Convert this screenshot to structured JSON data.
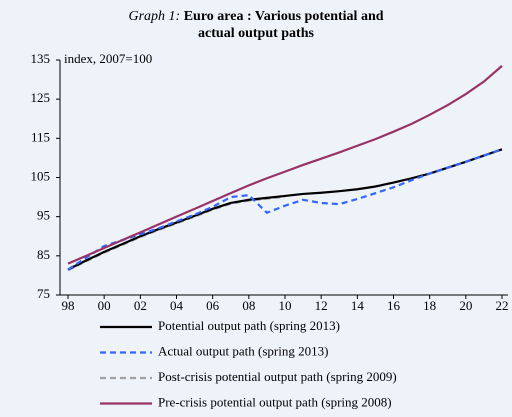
{
  "chart_data": {
    "type": "line",
    "label": "Graph 1:",
    "title": "Euro area : Various potential and actual output paths",
    "y_label": "index, 2007=100",
    "x": [
      1998,
      1999,
      2000,
      2001,
      2002,
      2003,
      2004,
      2005,
      2006,
      2007,
      2008,
      2009,
      2010,
      2011,
      2012,
      2013,
      2014,
      2015,
      2016,
      2017,
      2018,
      2019,
      2020,
      2021,
      2022
    ],
    "xlim": [
      1998,
      2022
    ],
    "xticks": [
      {
        "value": 1998,
        "label": "98"
      },
      {
        "value": 2000,
        "label": "00"
      },
      {
        "value": 2002,
        "label": "02"
      },
      {
        "value": 2004,
        "label": "04"
      },
      {
        "value": 2006,
        "label": "06"
      },
      {
        "value": 2008,
        "label": "08"
      },
      {
        "value": 2010,
        "label": "10"
      },
      {
        "value": 2012,
        "label": "12"
      },
      {
        "value": 2014,
        "label": "14"
      },
      {
        "value": 2016,
        "label": "16"
      },
      {
        "value": 2018,
        "label": "18"
      },
      {
        "value": 2020,
        "label": "20"
      },
      {
        "value": 2022,
        "label": "22"
      }
    ],
    "ylim": [
      75,
      135
    ],
    "yticks": [
      75,
      85,
      95,
      105,
      115,
      125,
      135
    ],
    "series": [
      {
        "name": "Potential output path (spring 2013)",
        "color": "#000000",
        "dash": false,
        "values": [
          81.5,
          83.8,
          86,
          88,
          90,
          91.8,
          93.5,
          95.2,
          97,
          98.5,
          99.3,
          99.8,
          100.3,
          100.8,
          101.1,
          101.5,
          102,
          102.7,
          103.7,
          104.8,
          106,
          107.5,
          109,
          110.6,
          112.2
        ]
      },
      {
        "name": "Actual output path (spring 2013)",
        "color": "#3366ff",
        "dash": true,
        "values": [
          81.5,
          84.5,
          87.5,
          89,
          90.5,
          92,
          93.8,
          95.5,
          97.5,
          100,
          100.5,
          96,
          97.8,
          99.3,
          98.5,
          98.2,
          99.5,
          101,
          102.5,
          104.3,
          106,
          107.5,
          109,
          110.6,
          112.2
        ]
      },
      {
        "name": "Post-crisis potential output path (spring 2009)",
        "color": "#a0a0a0",
        "dash": true,
        "values": [
          81.3,
          83.6,
          85.8,
          87.8,
          89.8,
          91.6,
          93.3,
          95,
          96.8,
          98.3,
          99.1,
          99.6,
          100.1,
          null,
          null,
          null,
          null,
          null,
          null,
          null,
          null,
          null,
          null,
          null,
          null
        ]
      },
      {
        "name": "Pre-crisis potential output path (spring 2008)",
        "color": "#993366",
        "dash": false,
        "values": [
          83,
          85,
          87,
          89,
          91,
          93,
          95,
          97,
          99,
          101,
          103,
          104.8,
          106.5,
          108.2,
          109.8,
          111.4,
          113.1,
          114.8,
          116.7,
          118.7,
          121,
          123.5,
          126.3,
          129.5,
          133.5
        ]
      }
    ]
  }
}
